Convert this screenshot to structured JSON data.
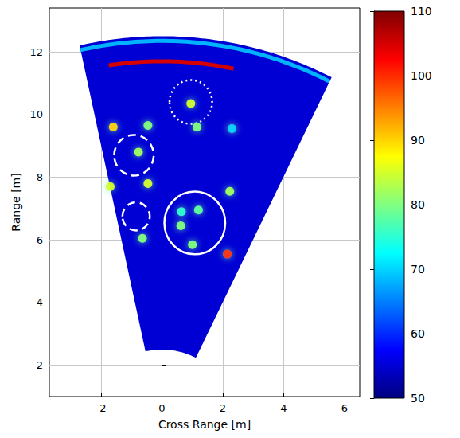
{
  "chart_data": {
    "type": "scatter",
    "x_label": "Cross Range [m]",
    "y_label": "Range [m]",
    "xlim": [
      -3.7,
      6.5
    ],
    "xticks": [
      -2,
      0,
      2,
      4,
      6
    ],
    "ylim": [
      1,
      13.4
    ],
    "yticks": [
      2,
      4,
      6,
      8,
      10,
      12
    ],
    "grid": true,
    "sector": {
      "range_min": 2.5,
      "range_max": 12.5,
      "angle_from": -12.5,
      "angle_to": 26.5,
      "value": 55
    },
    "arcs": [
      {
        "range": 12.35,
        "angle_from": -12.5,
        "angle_to": 26.5,
        "value": 68
      },
      {
        "range": 11.7,
        "angle_from": -8.6,
        "angle_to": 11.6,
        "value": 105
      }
    ],
    "points": {
      "x": [
        0.95,
        -1.6,
        -0.46,
        1.15,
        -0.77,
        -0.46,
        -1.7,
        2.23,
        0.64,
        1.2,
        0.62,
        1.0,
        -0.64,
        2.15,
        2.3
      ],
      "y": [
        10.35,
        9.6,
        9.65,
        9.6,
        8.8,
        7.8,
        7.7,
        7.55,
        6.9,
        6.95,
        6.45,
        5.85,
        6.05,
        5.55,
        9.55
      ],
      "values": [
        85,
        90,
        80,
        80,
        82,
        85,
        85,
        82,
        75,
        78,
        80,
        80,
        80,
        100,
        70
      ]
    },
    "annotations": [
      {
        "x": 0.95,
        "y": 10.4,
        "r": 0.7,
        "line_style": "dotted"
      },
      {
        "x": -0.92,
        "y": 8.7,
        "r": 0.65,
        "line_style": "dashed"
      },
      {
        "x": -0.85,
        "y": 6.75,
        "r": 0.45,
        "line_style": "dashed"
      },
      {
        "x": 1.08,
        "y": 6.54,
        "r": 1.0,
        "line_style": "solid"
      }
    ],
    "colorbar": {
      "range": [
        50,
        110
      ],
      "ticks": [
        50,
        60,
        70,
        80,
        90,
        100,
        110
      ]
    }
  }
}
